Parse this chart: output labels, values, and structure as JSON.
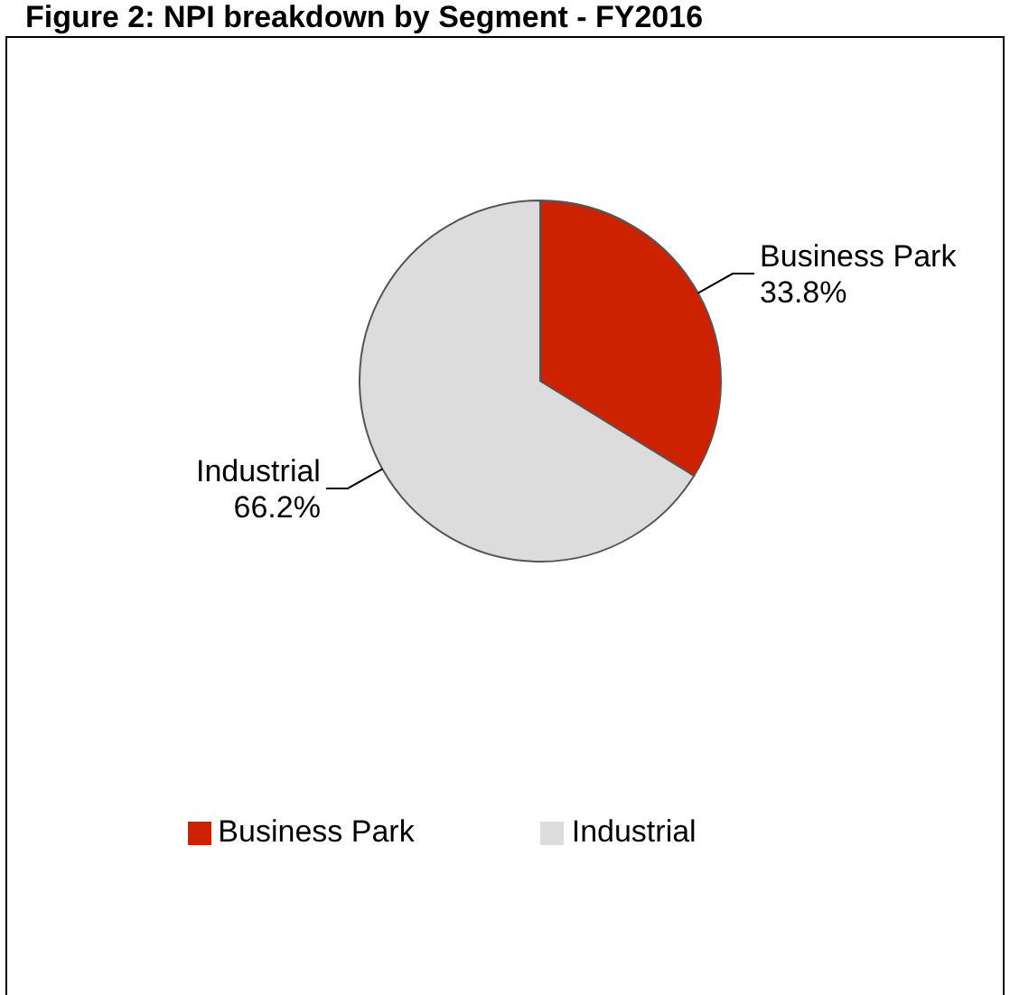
{
  "chart_data": {
    "type": "pie",
    "title": "Figure 2: NPI breakdown by Segment - FY2016",
    "categories": [
      "Business Park",
      "Industrial"
    ],
    "values": [
      33.8,
      66.2
    ],
    "colors": [
      "#cc2200",
      "#dcdcdc"
    ],
    "value_labels": [
      "33.8%",
      "66.2%"
    ],
    "legend": "bottom"
  }
}
